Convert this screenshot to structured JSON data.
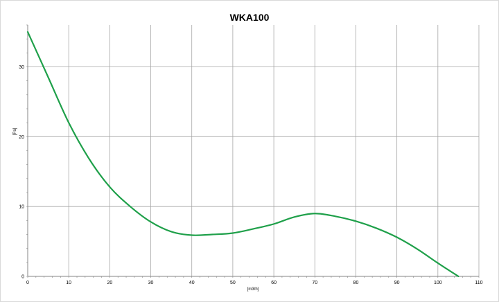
{
  "chart_data": {
    "type": "line",
    "title": "WKA100",
    "xlabel": "[m3/h]",
    "ylabel": "[Pa]",
    "xlim": [
      0,
      110
    ],
    "ylim": [
      0,
      36
    ],
    "xticks": [
      0,
      10,
      20,
      30,
      40,
      50,
      60,
      70,
      80,
      90,
      100,
      110
    ],
    "yticks": [
      0,
      10,
      20,
      30
    ],
    "grid": true,
    "legend": "none",
    "colors": {
      "line": "#1fa04a",
      "grid": "#a6a6a6",
      "axis": "#868686"
    },
    "series": [
      {
        "x": [
          0,
          5,
          10,
          15,
          20,
          25,
          30,
          35,
          40,
          45,
          50,
          55,
          60,
          65,
          70,
          75,
          80,
          85,
          90,
          95,
          100,
          105
        ],
        "y": [
          35,
          28.5,
          22,
          16.8,
          12.8,
          10,
          7.8,
          6.4,
          5.9,
          6.0,
          6.2,
          6.8,
          7.5,
          8.5,
          9.0,
          8.6,
          7.9,
          6.9,
          5.6,
          3.9,
          1.9,
          0
        ]
      }
    ]
  }
}
